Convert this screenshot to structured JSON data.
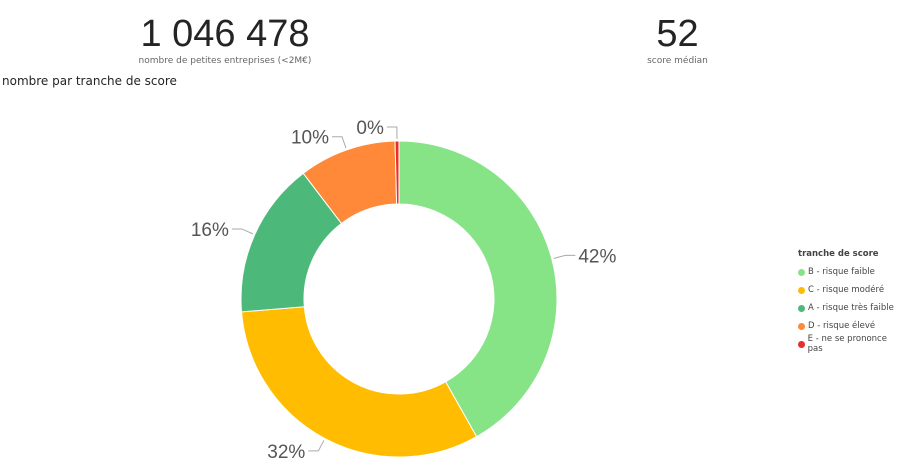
{
  "kpis": [
    {
      "value": "1 046 478",
      "label": "nombre de petites entreprises (<2M€)"
    },
    {
      "value": "52",
      "label": "score médian"
    }
  ],
  "chart_data": {
    "type": "pie",
    "donut": true,
    "title": "nombre par tranche de score",
    "legend_title": "tranche de score",
    "legend_position": "right",
    "slices": [
      {
        "name": "B - risque faible",
        "value": 42,
        "label": "42%",
        "color": "#86E386"
      },
      {
        "name": "C - risque modéré",
        "value": 32,
        "label": "32%",
        "color": "#FFBC00"
      },
      {
        "name": "A - risque très faible",
        "value": 16,
        "label": "16%",
        "color": "#4CB97B"
      },
      {
        "name": "D - risque élevé",
        "value": 10,
        "label": "10%",
        "color": "#FF8839"
      },
      {
        "name": "E - ne se prononce pas",
        "value": 0.4,
        "label": "0%",
        "color": "#E8302A"
      }
    ]
  }
}
